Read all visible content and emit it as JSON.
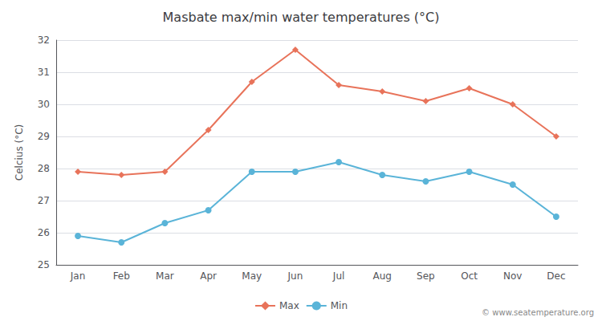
{
  "chart_data": {
    "type": "line",
    "title": "Masbate max/min water temperatures (°C)",
    "ylabel": "Celcius (°C)",
    "categories": [
      "Jan",
      "Feb",
      "Mar",
      "Apr",
      "May",
      "Jun",
      "Jul",
      "Aug",
      "Sep",
      "Oct",
      "Nov",
      "Dec"
    ],
    "series": [
      {
        "name": "Max",
        "color": "#e8735a",
        "marker": "diamond",
        "values": [
          27.9,
          27.8,
          27.9,
          29.2,
          30.7,
          31.7,
          30.6,
          30.4,
          30.1,
          30.5,
          30.0,
          29.0
        ]
      },
      {
        "name": "Min",
        "color": "#5ab4d8",
        "marker": "circle",
        "values": [
          25.9,
          25.7,
          26.3,
          26.7,
          27.9,
          27.9,
          28.2,
          27.8,
          27.6,
          27.9,
          27.5,
          26.5
        ]
      }
    ],
    "ylim": [
      25,
      32
    ],
    "yticks": [
      25,
      26,
      27,
      28,
      29,
      30,
      31,
      32
    ],
    "grid": true,
    "legend": "bottom",
    "annotation": "© www.seatemperature.org"
  }
}
